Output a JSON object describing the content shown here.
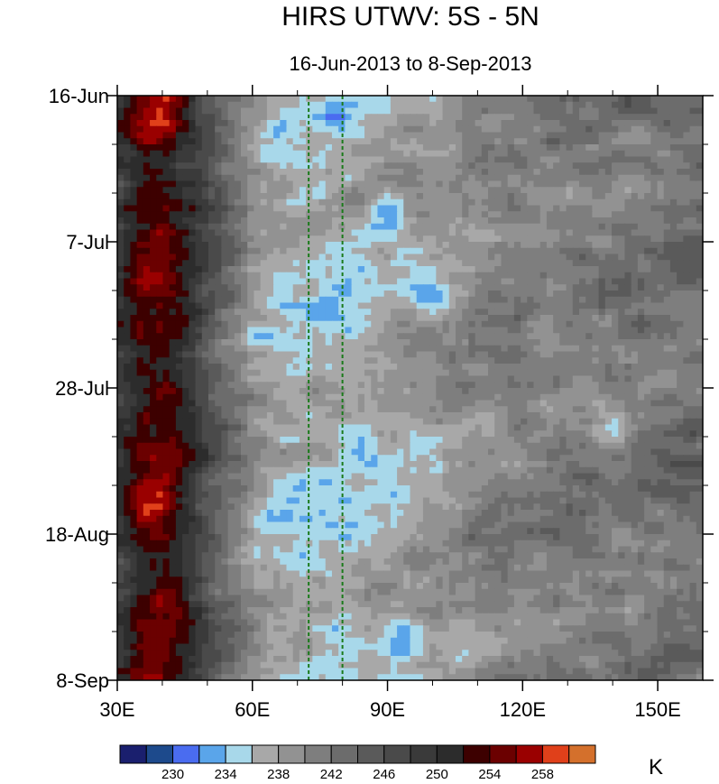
{
  "chart_data": {
    "type": "heatmap",
    "title": "HIRS UTWV: 5S - 5N",
    "subtitle": "16-Jun-2013 to 8-Sep-2013",
    "xlabel": "",
    "ylabel": "",
    "xlim": [
      30,
      160
    ],
    "ylim_days": [
      0,
      84
    ],
    "y_inverted": true,
    "x_ticks": [
      {
        "value": 30,
        "label": "30E"
      },
      {
        "value": 60,
        "label": "60E"
      },
      {
        "value": 90,
        "label": "90E"
      },
      {
        "value": 120,
        "label": "120E"
      },
      {
        "value": 150,
        "label": "150E"
      }
    ],
    "y_ticks": [
      {
        "value": 0,
        "label": "16-Jun"
      },
      {
        "value": 21,
        "label": "7-Jul"
      },
      {
        "value": 42,
        "label": "28-Jul"
      },
      {
        "value": 63,
        "label": "18-Aug"
      },
      {
        "value": 84,
        "label": "8-Sep"
      }
    ],
    "reference_lines": [
      {
        "lon": 72.5,
        "style": "dashed",
        "color": "#1a7a1a"
      },
      {
        "lon": 80,
        "style": "dashed",
        "color": "#1a7a1a"
      }
    ],
    "colorbar": {
      "unit": "K",
      "levels": [
        228,
        230,
        232,
        234,
        236,
        238,
        240,
        242,
        244,
        246,
        248,
        250,
        252,
        254,
        256,
        258
      ],
      "labels": [
        "230",
        "234",
        "238",
        "242",
        "246",
        "250",
        "254",
        "258"
      ],
      "colors": [
        "#1a1f6e",
        "#1d4a8c",
        "#4a6cf0",
        "#5aa5ea",
        "#a8d8ea",
        "#a8a8a8",
        "#929292",
        "#7e7e7e",
        "#6c6c6c",
        "#5a5a5a",
        "#4a4a4a",
        "#3a3a3a",
        "#2c2c2c",
        "#3d0000",
        "#6b0000",
        "#9a0000",
        "#e0401a",
        "#d4702c"
      ]
    },
    "field_description_keys": {
      "zonal_profile": [
        {
          "lon": 30,
          "value": 249
        },
        {
          "lon": 35,
          "value": 253
        },
        {
          "lon": 40,
          "value": 254
        },
        {
          "lon": 45,
          "value": 251
        },
        {
          "lon": 50,
          "value": 247
        },
        {
          "lon": 55,
          "value": 243
        },
        {
          "lon": 60,
          "value": 239
        },
        {
          "lon": 65,
          "value": 236.5
        },
        {
          "lon": 70,
          "value": 236
        },
        {
          "lon": 75,
          "value": 236.5
        },
        {
          "lon": 80,
          "value": 236
        },
        {
          "lon": 85,
          "value": 236.5
        },
        {
          "lon": 90,
          "value": 237.5
        },
        {
          "lon": 95,
          "value": 238
        },
        {
          "lon": 100,
          "value": 238.5
        },
        {
          "lon": 110,
          "value": 240
        },
        {
          "lon": 120,
          "value": 241
        },
        {
          "lon": 130,
          "value": 241
        },
        {
          "lon": 140,
          "value": 242
        },
        {
          "lon": 150,
          "value": 242
        },
        {
          "lon": 160,
          "value": 243
        }
      ],
      "hot_spots": [
        {
          "lon": 40,
          "day": 5,
          "value": 256
        },
        {
          "lon": 40,
          "day": 21,
          "value": 255
        },
        {
          "lon": 38,
          "day": 59,
          "value": 256
        },
        {
          "lon": 40,
          "day": 73,
          "value": 256
        },
        {
          "lon": 38,
          "day": 84,
          "value": 255
        }
      ],
      "cold_spots": [
        {
          "lon": 90,
          "day": 17,
          "value": 232
        },
        {
          "lon": 100,
          "day": 29,
          "value": 233
        },
        {
          "lon": 85,
          "day": 50,
          "value": 233
        },
        {
          "lon": 92,
          "day": 78,
          "value": 233
        },
        {
          "lon": 125,
          "day": 35,
          "value": 236
        },
        {
          "lon": 140,
          "day": 48,
          "value": 236
        }
      ]
    }
  }
}
